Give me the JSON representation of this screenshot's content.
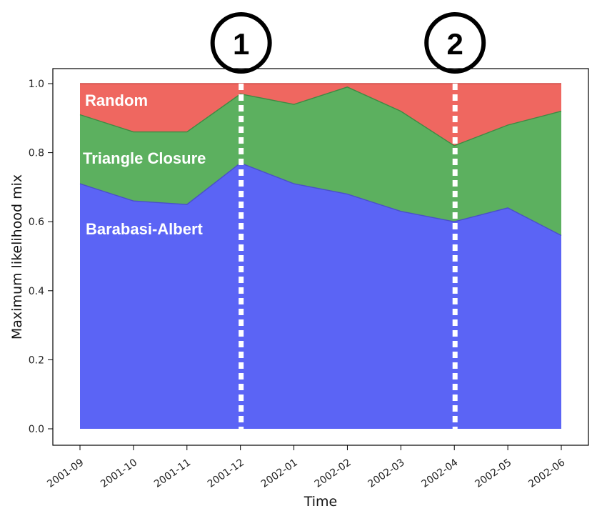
{
  "chart_data": {
    "type": "area",
    "stacked": true,
    "x": [
      "2001-09",
      "2001-10",
      "2001-11",
      "2001-12",
      "2002-01",
      "2002-02",
      "2002-03",
      "2002-04",
      "2002-05",
      "2002-06"
    ],
    "series": [
      {
        "name": "Barabasi-Albert",
        "color": "#5b64f5",
        "values": [
          0.71,
          0.66,
          0.65,
          0.77,
          0.71,
          0.68,
          0.63,
          0.6,
          0.64,
          0.56
        ]
      },
      {
        "name": "Triangle Closure",
        "color": "#5cb05f",
        "values": [
          0.2,
          0.2,
          0.21,
          0.2,
          0.23,
          0.31,
          0.29,
          0.22,
          0.24,
          0.36
        ]
      },
      {
        "name": "Random",
        "color": "#ef6760",
        "values": [
          0.09,
          0.14,
          0.14,
          0.03,
          0.06,
          0.01,
          0.08,
          0.18,
          0.12,
          0.08
        ]
      }
    ],
    "xlabel": "Time",
    "ylabel": "Maximum likelihood mix",
    "ylim": [
      0,
      1.0
    ],
    "yticks": [
      "0.0",
      "0.2",
      "0.4",
      "0.6",
      "0.8",
      "1.0"
    ],
    "grid": false,
    "markers": [
      {
        "label": "1",
        "x": "2001-12"
      },
      {
        "label": "2",
        "x": "2002-04"
      }
    ]
  }
}
